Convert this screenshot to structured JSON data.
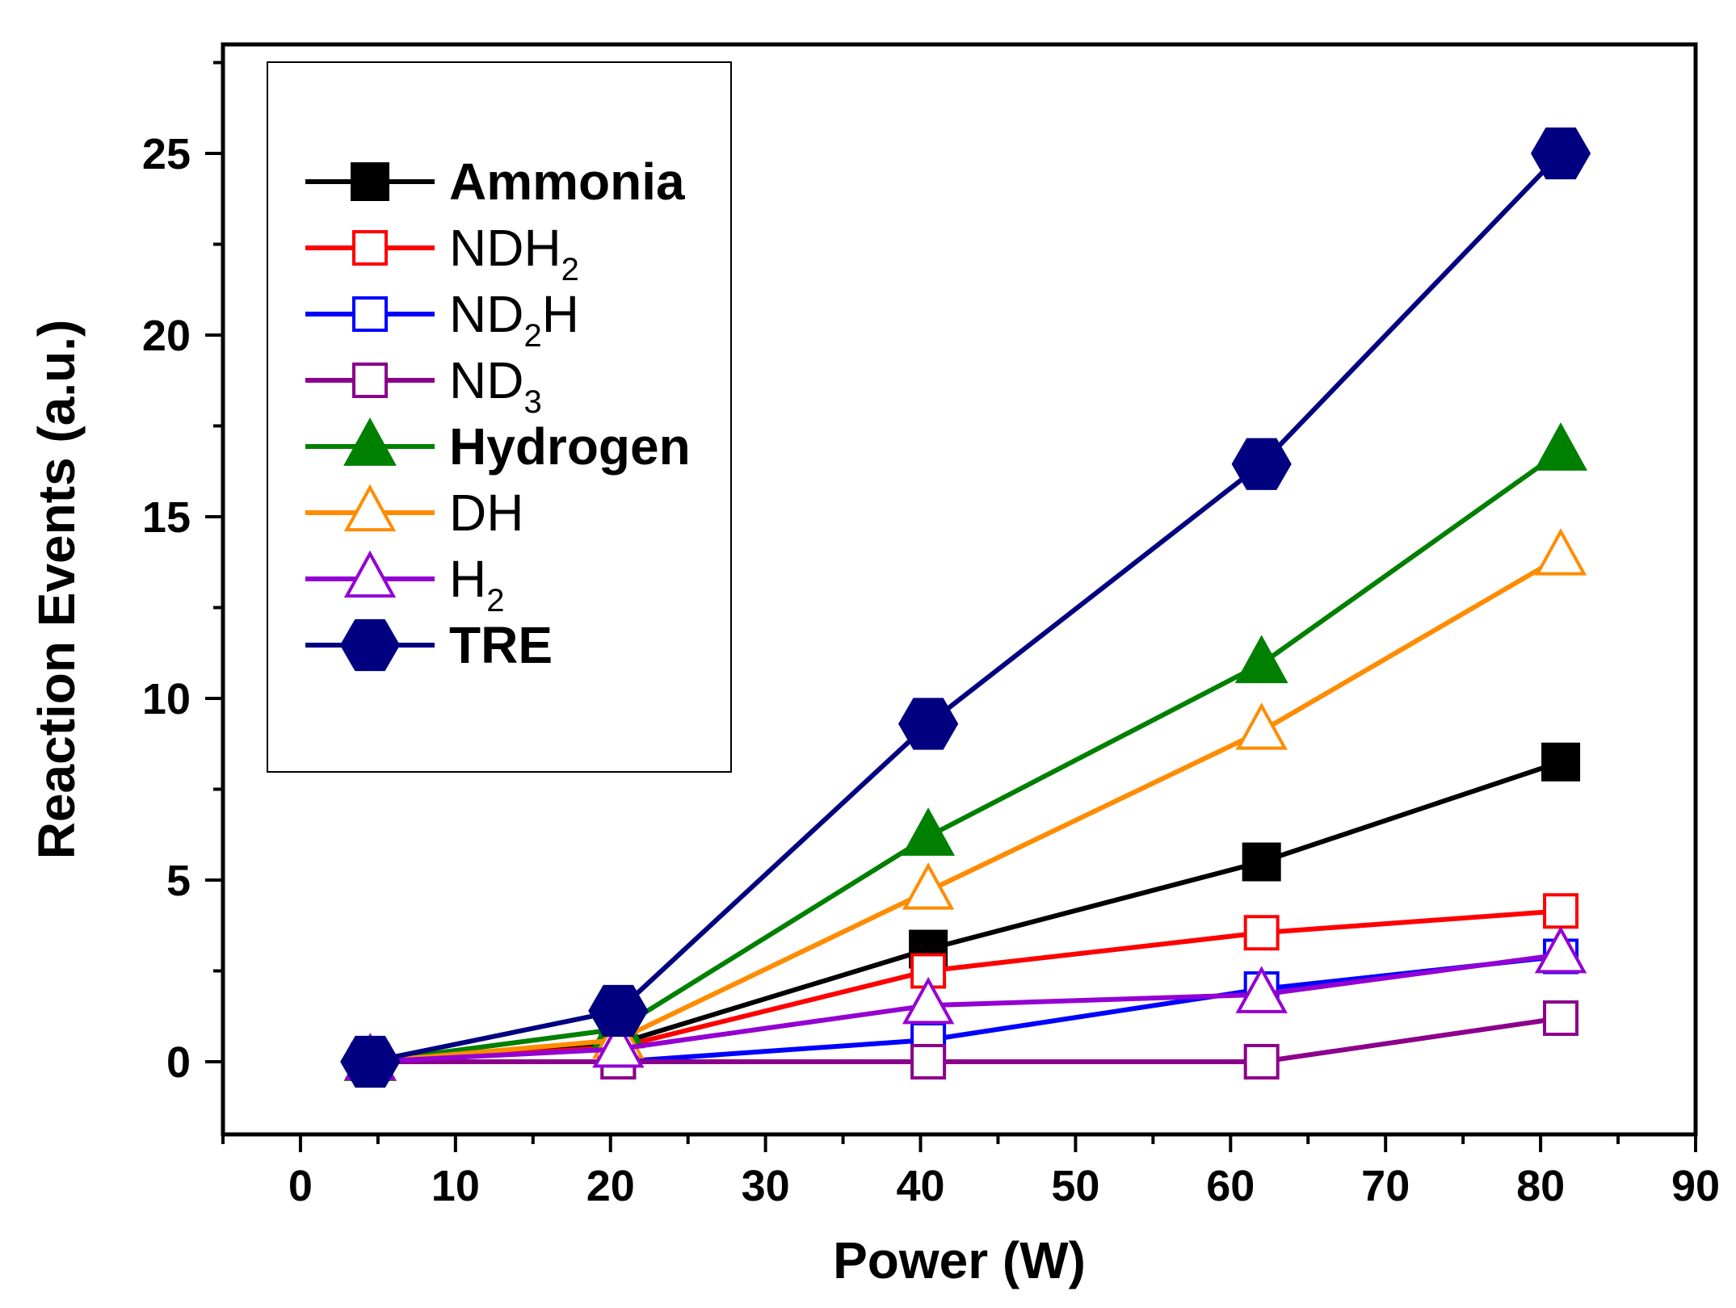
{
  "chart_data": {
    "type": "line",
    "title": "",
    "xlabel": "Power (W)",
    "ylabel": "Reaction Events (a.u.)",
    "xlim": [
      -5,
      90
    ],
    "ylim": [
      -2,
      28
    ],
    "xticks": [
      0,
      10,
      20,
      30,
      40,
      50,
      60,
      70,
      80,
      90
    ],
    "yticks": [
      0,
      5,
      10,
      15,
      20,
      25
    ],
    "grid": false,
    "legend_position": "top-left",
    "x": [
      4.5,
      20.5,
      40.5,
      62,
      81.3
    ],
    "series": [
      {
        "name": "Ammonia",
        "bold": true,
        "color": "#000000",
        "marker": "square",
        "filled": true,
        "values": [
          0,
          0.5,
          3.1,
          5.5,
          8.25
        ]
      },
      {
        "name": "NDH",
        "sub": "2",
        "suffix": "",
        "bold": false,
        "color": "#ff0000",
        "marker": "square",
        "filled": false,
        "values": [
          0,
          0.4,
          2.5,
          3.55,
          4.15
        ]
      },
      {
        "name": "ND",
        "sub": "2",
        "suffix": "H",
        "bold": false,
        "color": "#0000ff",
        "marker": "square",
        "filled": false,
        "values": [
          0,
          0,
          0.6,
          2.0,
          2.9
        ]
      },
      {
        "name": "ND",
        "sub": "3",
        "suffix": "",
        "bold": false,
        "color": "#8b008b",
        "marker": "square",
        "filled": false,
        "values": [
          0,
          0,
          0,
          0,
          1.2
        ]
      },
      {
        "name": "Hydrogen",
        "bold": true,
        "color": "#008000",
        "marker": "triangle",
        "filled": true,
        "values": [
          0,
          0.9,
          6.2,
          10.95,
          16.8
        ]
      },
      {
        "name": "DH",
        "bold": false,
        "color": "#ff8c00",
        "marker": "triangle",
        "filled": false,
        "values": [
          0,
          0.6,
          4.7,
          9.1,
          13.9
        ]
      },
      {
        "name": "H",
        "sub": "2",
        "suffix": "",
        "bold": false,
        "color": "#9400d3",
        "marker": "triangle",
        "filled": false,
        "values": [
          0,
          0.35,
          1.55,
          1.85,
          2.95
        ]
      },
      {
        "name": "TRE",
        "bold": true,
        "color": "#000080",
        "marker": "hexagon",
        "filled": true,
        "values": [
          0,
          1.4,
          9.3,
          16.45,
          25.0
        ]
      }
    ]
  }
}
